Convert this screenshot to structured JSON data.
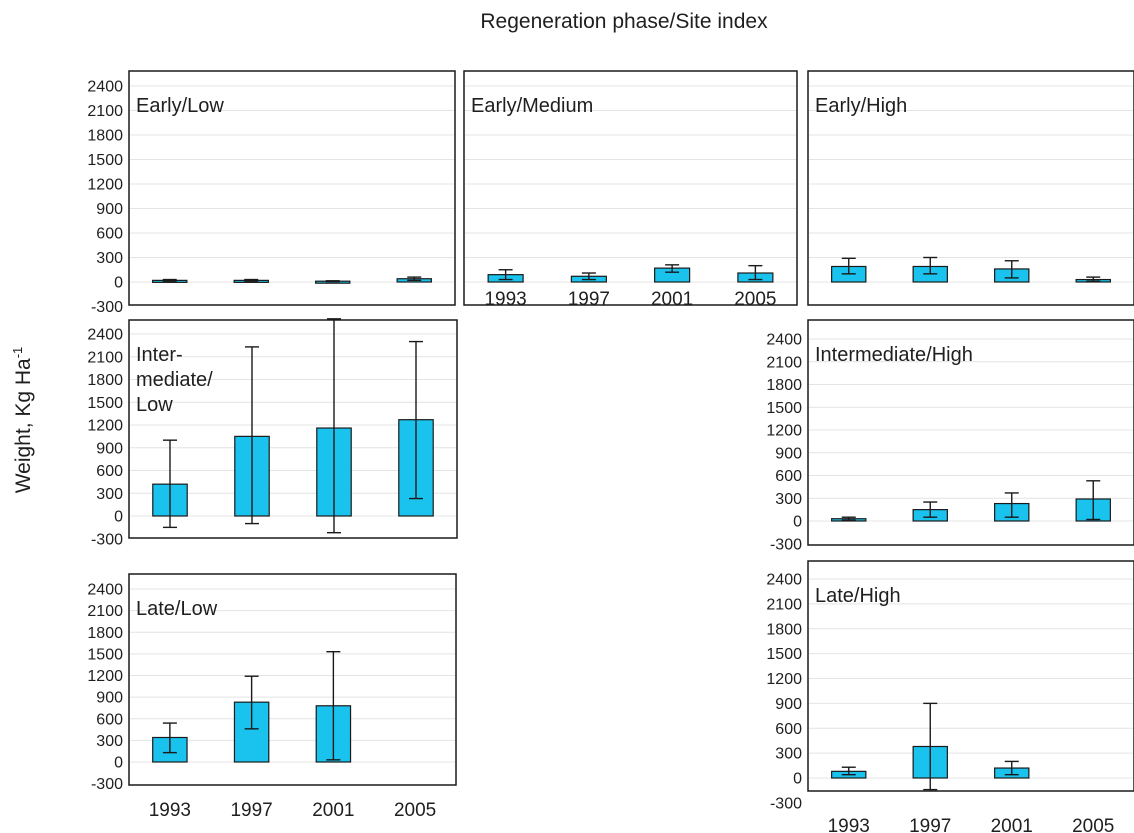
{
  "figure": {
    "title": "Regeneration phase/Site index",
    "ylabel": "Weight, Kg Ha",
    "ylabel_superscript": "-1"
  },
  "colors": {
    "bar_fill": "#19c3ee",
    "bar_stroke": "#1a1a1a",
    "gridline": "#e4e4e4",
    "frame": "#1a1a1a"
  },
  "chart_data": [
    {
      "type": "bar",
      "title": [
        "Early/Low"
      ],
      "categories": [
        "1993",
        "1997",
        "2001",
        "2005"
      ],
      "values": [
        20,
        20,
        10,
        40
      ],
      "error_low": [
        10,
        10,
        5,
        20
      ],
      "error_high": [
        30,
        30,
        15,
        60
      ],
      "ylim": [
        -300,
        2400
      ],
      "yticks": [
        -300,
        0,
        300,
        600,
        900,
        1200,
        1500,
        1800,
        2100,
        2400
      ],
      "ytick_labels": [
        "-300",
        "0",
        "300",
        "600",
        "900",
        "1200",
        "1500",
        "1800",
        "2100",
        "2400"
      ],
      "show_xticklabels": false,
      "grid": true
    },
    {
      "type": "bar",
      "title": [
        "Early/Medium"
      ],
      "categories": [
        "1993",
        "1997",
        "2001",
        "2005"
      ],
      "values": [
        90,
        70,
        170,
        110
      ],
      "error_low": [
        30,
        30,
        120,
        30
      ],
      "error_high": [
        150,
        110,
        210,
        200
      ],
      "ylim": [
        -300,
        2400
      ],
      "yticks": [
        -300,
        0,
        300,
        600,
        900,
        1200,
        1500,
        1800,
        2100,
        2400
      ],
      "ytick_labels": [],
      "show_xticklabels": true,
      "grid": true
    },
    {
      "type": "bar",
      "title": [
        "Early/High"
      ],
      "categories": [
        "1993",
        "1997",
        "2001",
        "2005"
      ],
      "values": [
        190,
        190,
        160,
        30
      ],
      "error_low": [
        100,
        100,
        50,
        10
      ],
      "error_high": [
        290,
        300,
        260,
        60
      ],
      "ylim": [
        -300,
        2400
      ],
      "yticks": [
        -300,
        0,
        300,
        600,
        900,
        1200,
        1500,
        1800,
        2100,
        2400
      ],
      "ytick_labels": [],
      "show_xticklabels": false,
      "grid": true
    },
    {
      "type": "bar",
      "title": [
        "Inter-",
        "mediate/",
        "Low"
      ],
      "categories": [
        "1993",
        "1997",
        "2001",
        "2005"
      ],
      "values": [
        420,
        1050,
        1160,
        1270
      ],
      "error_low": [
        -150,
        -100,
        -220,
        230
      ],
      "error_high": [
        1000,
        2230,
        2600,
        2300
      ],
      "ylim": [
        -300,
        2400
      ],
      "yticks": [
        -300,
        0,
        300,
        600,
        900,
        1200,
        1500,
        1800,
        2100,
        2400
      ],
      "ytick_labels": [
        "-300",
        "0",
        "300",
        "600",
        "900",
        "1200",
        "1500",
        "1800",
        "2100",
        "2400"
      ],
      "show_xticklabels": false,
      "grid": true
    },
    {
      "type": "bar",
      "title": [
        "Intermediate/High"
      ],
      "categories": [
        "1993",
        "1997",
        "2001",
        "2005"
      ],
      "values": [
        30,
        150,
        230,
        290
      ],
      "error_low": [
        10,
        50,
        50,
        20
      ],
      "error_high": [
        50,
        250,
        370,
        530
      ],
      "ylim": [
        -300,
        2400
      ],
      "yticks": [
        -300,
        0,
        300,
        600,
        900,
        1200,
        1500,
        1800,
        2100,
        2400
      ],
      "ytick_labels": [
        "-300",
        "0",
        "300",
        "600",
        "900",
        "1200",
        "1500",
        "1800",
        "2100",
        "2400"
      ],
      "show_xticklabels": false,
      "grid": true
    },
    {
      "type": "bar",
      "title": [
        "Late/Low"
      ],
      "categories": [
        "1993",
        "1997",
        "2001",
        "2005"
      ],
      "values": [
        340,
        830,
        780,
        null
      ],
      "error_low": [
        130,
        460,
        30,
        null
      ],
      "error_high": [
        540,
        1190,
        1530,
        null
      ],
      "ylim": [
        -300,
        2400
      ],
      "yticks": [
        -300,
        0,
        300,
        600,
        900,
        1200,
        1500,
        1800,
        2100,
        2400
      ],
      "ytick_labels": [
        "-300",
        "0",
        "300",
        "600",
        "900",
        "1200",
        "1500",
        "1800",
        "2100",
        "2400"
      ],
      "show_xticklabels": true,
      "grid": true
    },
    {
      "type": "bar",
      "title": [
        "Late/High"
      ],
      "categories": [
        "1993",
        "1997",
        "2001",
        "2005"
      ],
      "values": [
        80,
        380,
        120,
        null
      ],
      "error_low": [
        40,
        -140,
        40,
        null
      ],
      "error_high": [
        130,
        900,
        200,
        null
      ],
      "ylim": [
        -300,
        2400
      ],
      "yticks": [
        -300,
        0,
        300,
        600,
        900,
        1200,
        1500,
        1800,
        2100,
        2400
      ],
      "ytick_labels": [
        "-300",
        "0",
        "300",
        "600",
        "900",
        "1200",
        "1500",
        "1800",
        "2100",
        "2400"
      ],
      "show_xticklabels": true,
      "grid": true
    }
  ]
}
